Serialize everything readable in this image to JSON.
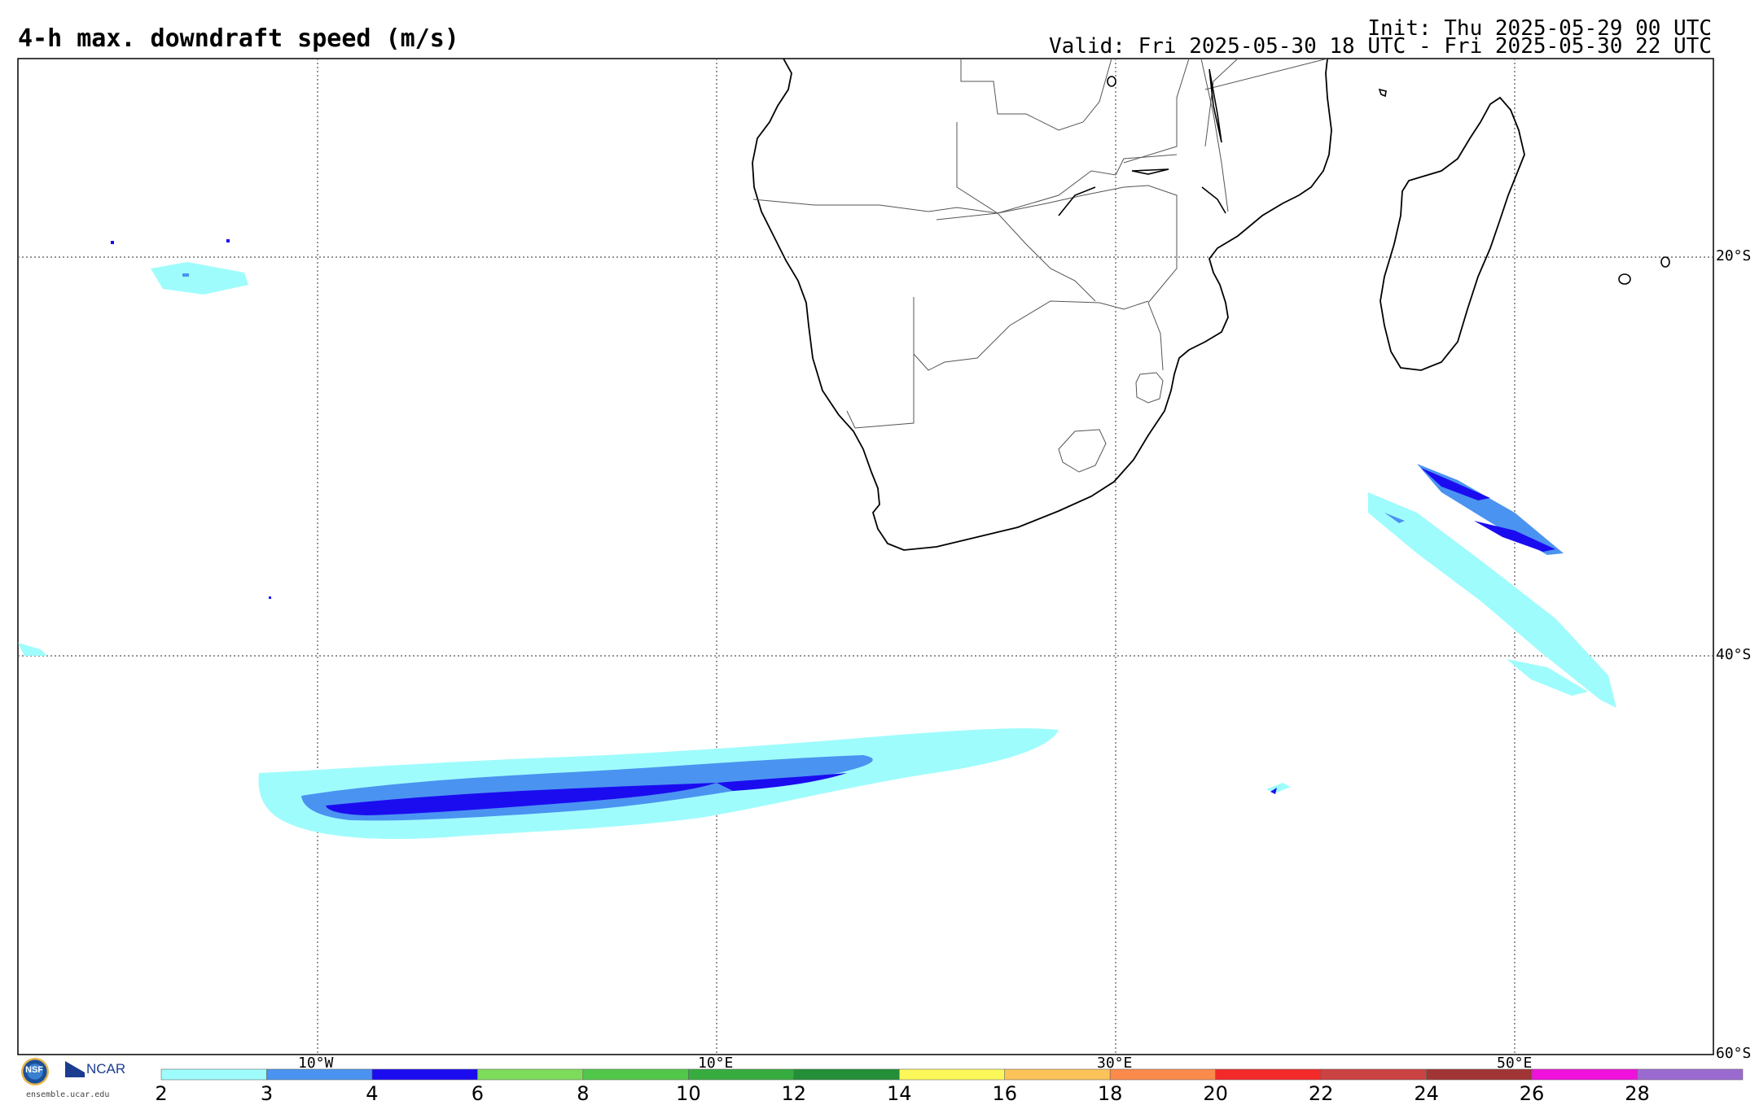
{
  "header": {
    "title": "4-h max. downdraft speed (m/s)",
    "init": "Init: Thu 2025-05-29 00 UTC",
    "valid": "Valid: Fri 2025-05-30 18 UTC - Fri 2025-05-30 22 UTC"
  },
  "map": {
    "lon_labels": [
      "10°W",
      "10°E",
      "30°E",
      "50°E"
    ],
    "lat_labels": [
      "20°S",
      "40°S",
      "60°S"
    ]
  },
  "colorbar": {
    "colors": [
      "#9ffcfc",
      "#4b93f0",
      "#1b0cf0",
      "#7ddc5a",
      "#52c84a",
      "#36ad3e",
      "#238f38",
      "#fcf85a",
      "#fcc35a",
      "#fc8a4a",
      "#f22a2a",
      "#cb4242",
      "#a13434",
      "#f011dc",
      "#9b6ad0"
    ],
    "labels": [
      "2",
      "3",
      "4",
      "6",
      "8",
      "10",
      "12",
      "14",
      "16",
      "18",
      "20",
      "22",
      "24",
      "26",
      "28"
    ]
  },
  "credits": {
    "nsf": "NSF",
    "ncar": "NCAR",
    "site": "ensemble.ucar.edu"
  }
}
